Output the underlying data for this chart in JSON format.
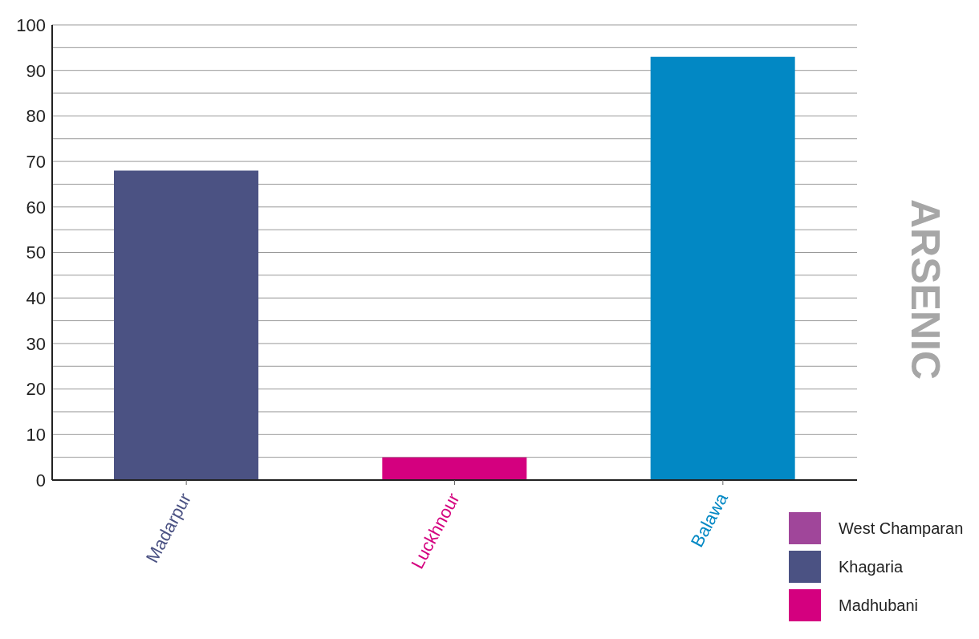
{
  "chart_data": {
    "type": "bar",
    "title": "ARSENIC",
    "categories": [
      "Madarpur",
      "Luckhnour",
      "Balawa"
    ],
    "stacked": true,
    "series": [
      {
        "name": "West Champaran",
        "color": "#a0469a",
        "values": [
          null,
          null,
          null
        ]
      },
      {
        "name": "Khagaria",
        "color": "#4b5283",
        "values": [
          68,
          null,
          null
        ]
      },
      {
        "name": "Madhubani",
        "color": "#d4007f",
        "values": [
          null,
          5,
          null
        ]
      },
      {
        "color": "#0288c4",
        "values": [
          null,
          null,
          93
        ]
      }
    ],
    "ylim": [
      0,
      100
    ],
    "yticks": [
      0,
      {
        "value": 5,
        "label": null
      },
      10,
      {
        "value": 15,
        "label": null
      },
      20,
      {
        "value": 25,
        "label": null
      },
      30,
      {
        "value": 35,
        "label": null
      },
      40,
      {
        "value": 45,
        "label": null
      },
      50,
      {
        "value": 55,
        "label": null
      },
      60,
      {
        "value": 65,
        "label": null
      },
      70,
      {
        "value": 75,
        "label": null
      },
      80,
      {
        "value": 85,
        "label": null
      },
      90,
      {
        "value": 95,
        "label": null
      },
      100
    ],
    "grid": "y",
    "legend": "bottom right"
  }
}
